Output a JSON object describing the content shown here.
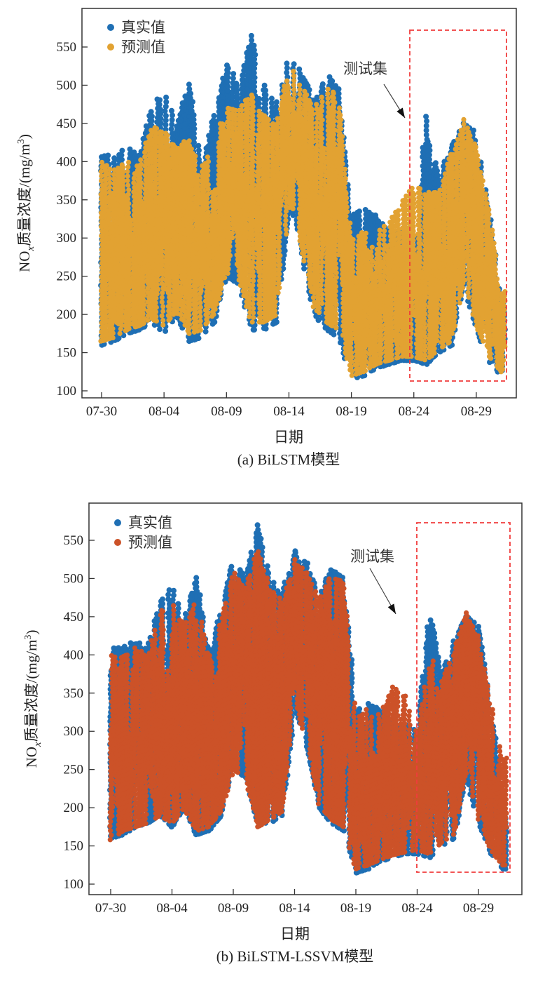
{
  "colors": {
    "true": "#1f6fb4",
    "pred_a": "#e2a232",
    "pred_b": "#cc5228",
    "box": "#f03c3c"
  },
  "chart_data": [
    {
      "type": "scatter",
      "caption": "(a) BiLSTM模型",
      "xlabel": "日期",
      "ylabel_main": "NO",
      "ylabel_sub": "x",
      "ylabel_rest": "质量浓度/(mg/m",
      "ylabel_sup": "3",
      "ylabel_end": ")",
      "ylim": [
        100,
        570
      ],
      "yticks": [
        100,
        150,
        200,
        250,
        300,
        350,
        400,
        450,
        500,
        550
      ],
      "xticks": [
        "07-30",
        "08-04",
        "08-09",
        "08-14",
        "08-19",
        "08-24",
        "08-29"
      ],
      "xtick_days": [
        0,
        5,
        10,
        15,
        20,
        25,
        30
      ],
      "legend": [
        "真实值",
        "预测值"
      ],
      "legend_placement": "top-left",
      "annotation": "测试集",
      "test_range_days": [
        25,
        32.5
      ],
      "note": "series given as daily ranges [day, min, max] of NOx (mg/m3)",
      "series": [
        {
          "name": "真实值",
          "ranges": [
            [
              0,
              160,
              410
            ],
            [
              1,
              165,
              410
            ],
            [
              2,
              175,
              420
            ],
            [
              3,
              180,
              410
            ],
            [
              4,
              190,
              470
            ],
            [
              5,
              175,
              495
            ],
            [
              6,
              200,
              450
            ],
            [
              7,
              165,
              505
            ],
            [
              8,
              170,
              400
            ],
            [
              9,
              190,
              460
            ],
            [
              10,
              250,
              530
            ],
            [
              11,
              240,
              500
            ],
            [
              12,
              180,
              570
            ],
            [
              13,
              180,
              500
            ],
            [
              14,
              190,
              480
            ],
            [
              15,
              330,
              540
            ],
            [
              16,
              280,
              520
            ],
            [
              17,
              200,
              480
            ],
            [
              18,
              180,
              515
            ],
            [
              19,
              170,
              500
            ],
            [
              20,
              115,
              330
            ],
            [
              21,
              120,
              340
            ],
            [
              22,
              130,
              330
            ],
            [
              23,
              135,
              310
            ],
            [
              24,
              140,
              310
            ],
            [
              25,
              140,
              300
            ],
            [
              26,
              135,
              460
            ],
            [
              27,
              150,
              380
            ],
            [
              28,
              160,
              420
            ],
            [
              29,
              240,
              455
            ],
            [
              30,
              180,
              440
            ],
            [
              31,
              140,
              340
            ],
            [
              32,
              120,
              220
            ]
          ]
        },
        {
          "name": "预测值",
          "ranges": [
            [
              0,
              165,
              400
            ],
            [
              1,
              170,
              390
            ],
            [
              2,
              180,
              400
            ],
            [
              3,
              185,
              400
            ],
            [
              4,
              195,
              450
            ],
            [
              5,
              185,
              440
            ],
            [
              6,
              205,
              420
            ],
            [
              7,
              175,
              430
            ],
            [
              8,
              180,
              390
            ],
            [
              9,
              200,
              430
            ],
            [
              10,
              255,
              470
            ],
            [
              11,
              245,
              470
            ],
            [
              12,
              190,
              490
            ],
            [
              13,
              190,
              460
            ],
            [
              14,
              200,
              450
            ],
            [
              15,
              340,
              530
            ],
            [
              16,
              290,
              500
            ],
            [
              17,
              210,
              470
            ],
            [
              18,
              190,
              500
            ],
            [
              19,
              180,
              490
            ],
            [
              20,
              120,
              300
            ],
            [
              21,
              125,
              310
            ],
            [
              22,
              135,
              310
            ],
            [
              23,
              140,
              320
            ],
            [
              24,
              145,
              350
            ],
            [
              25,
              145,
              370
            ],
            [
              26,
              140,
              360
            ],
            [
              27,
              155,
              360
            ],
            [
              28,
              165,
              410
            ],
            [
              29,
              245,
              455
            ],
            [
              30,
              185,
              420
            ],
            [
              31,
              145,
              340
            ],
            [
              32,
              125,
              230
            ]
          ]
        }
      ]
    },
    {
      "type": "scatter",
      "caption": "(b) BiLSTM-LSSVM模型",
      "xlabel": "日期",
      "ylabel_main": "NO",
      "ylabel_sub": "x",
      "ylabel_rest": "质量浓度/(mg/m",
      "ylabel_sup": "3",
      "ylabel_end": ")",
      "ylim": [
        100,
        570
      ],
      "yticks": [
        100,
        150,
        200,
        250,
        300,
        350,
        400,
        450,
        500,
        550
      ],
      "xticks": [
        "07-30",
        "08-04",
        "08-09",
        "08-14",
        "08-19",
        "08-24",
        "08-29"
      ],
      "xtick_days": [
        0,
        5,
        10,
        15,
        20,
        25,
        30
      ],
      "legend": [
        "真实值",
        "预测值"
      ],
      "legend_placement": "top-left",
      "annotation": "测试集",
      "test_range_days": [
        25,
        32.5
      ],
      "note": "series given as daily ranges [day, min, max] of NOx (mg/m3)",
      "series": [
        {
          "name": "真实值",
          "ranges": [
            [
              0,
              160,
              410
            ],
            [
              1,
              165,
              410
            ],
            [
              2,
              175,
              420
            ],
            [
              3,
              180,
              410
            ],
            [
              4,
              190,
              470
            ],
            [
              5,
              175,
              495
            ],
            [
              6,
              200,
              450
            ],
            [
              7,
              165,
              505
            ],
            [
              8,
              170,
              400
            ],
            [
              9,
              190,
              460
            ],
            [
              10,
              250,
              530
            ],
            [
              11,
              240,
              500
            ],
            [
              12,
              180,
              570
            ],
            [
              13,
              180,
              500
            ],
            [
              14,
              190,
              480
            ],
            [
              15,
              330,
              540
            ],
            [
              16,
              280,
              520
            ],
            [
              17,
              200,
              480
            ],
            [
              18,
              180,
              515
            ],
            [
              19,
              170,
              500
            ],
            [
              20,
              115,
              330
            ],
            [
              21,
              120,
              340
            ],
            [
              22,
              130,
              330
            ],
            [
              23,
              135,
              310
            ],
            [
              24,
              140,
              310
            ],
            [
              25,
              140,
              300
            ],
            [
              26,
              135,
              460
            ],
            [
              27,
              150,
              380
            ],
            [
              28,
              160,
              420
            ],
            [
              29,
              240,
              455
            ],
            [
              30,
              180,
              440
            ],
            [
              31,
              140,
              340
            ],
            [
              32,
              120,
              220
            ]
          ]
        },
        {
          "name": "预测值",
          "ranges": [
            [
              0,
              158,
              400
            ],
            [
              1,
              170,
              400
            ],
            [
              2,
              175,
              410
            ],
            [
              3,
              180,
              400
            ],
            [
              4,
              190,
              460
            ],
            [
              5,
              180,
              470
            ],
            [
              6,
              200,
              440
            ],
            [
              7,
              170,
              480
            ],
            [
              8,
              175,
              395
            ],
            [
              9,
              195,
              450
            ],
            [
              10,
              250,
              510
            ],
            [
              11,
              240,
              490
            ],
            [
              12,
              175,
              540
            ],
            [
              13,
              185,
              490
            ],
            [
              14,
              195,
              470
            ],
            [
              15,
              335,
              525
            ],
            [
              16,
              285,
              510
            ],
            [
              17,
              205,
              475
            ],
            [
              18,
              185,
              505
            ],
            [
              19,
              175,
              495
            ],
            [
              20,
              120,
              320
            ],
            [
              21,
              125,
              330
            ],
            [
              22,
              132,
              325
            ],
            [
              23,
              138,
              360
            ],
            [
              24,
              142,
              350
            ],
            [
              25,
              145,
              300
            ],
            [
              26,
              140,
              400
            ],
            [
              27,
              155,
              370
            ],
            [
              28,
              165,
              410
            ],
            [
              29,
              245,
              455
            ],
            [
              30,
              185,
              425
            ],
            [
              31,
              145,
              340
            ],
            [
              32,
              125,
              265
            ]
          ]
        }
      ]
    }
  ]
}
